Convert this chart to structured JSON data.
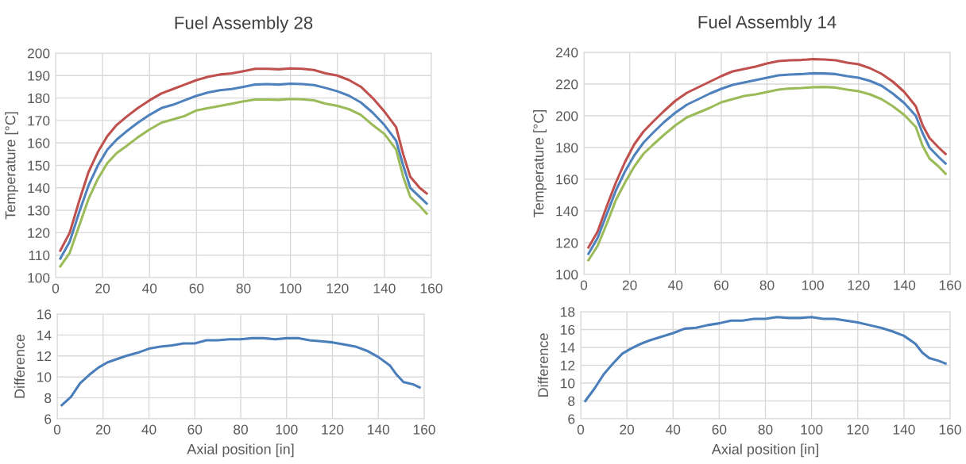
{
  "chart_data": [
    {
      "type": "line",
      "title": "Fuel Assembly 28",
      "ylabel": "Temperature [°C]",
      "grid": true,
      "xlim": [
        0,
        160
      ],
      "xticks": [
        0,
        20,
        40,
        60,
        80,
        100,
        120,
        140,
        160
      ],
      "ylim": [
        100,
        200
      ],
      "yticks": [
        100,
        110,
        120,
        130,
        140,
        150,
        160,
        170,
        180,
        190,
        200
      ],
      "x": [
        2,
        6,
        10,
        14,
        18,
        22,
        26,
        30,
        35,
        40,
        45,
        50,
        55,
        60,
        65,
        70,
        75,
        80,
        85,
        90,
        95,
        100,
        105,
        110,
        115,
        120,
        125,
        130,
        135,
        140,
        145,
        148,
        151,
        155,
        158
      ],
      "series": [
        {
          "color": "#c0504d",
          "values": [
            112,
            120,
            134,
            147,
            156,
            163,
            168,
            171.5,
            175.5,
            179,
            182,
            184,
            186,
            188,
            189.5,
            190.5,
            191,
            192,
            193,
            193,
            192.8,
            193.2,
            193,
            192.5,
            191,
            190,
            188,
            185,
            180,
            174,
            167,
            155,
            145,
            140,
            137.5
          ]
        },
        {
          "color": "#4f81bd",
          "values": [
            108.5,
            116,
            129,
            141,
            150,
            157,
            161.5,
            165,
            169,
            172.5,
            175.5,
            177,
            179,
            181,
            182.5,
            183.5,
            184,
            185,
            186,
            186.2,
            186,
            186.4,
            186.2,
            185.8,
            184.5,
            183,
            181,
            178,
            173.5,
            168,
            161,
            150,
            140,
            136,
            133
          ]
        },
        {
          "color": "#9bbb59",
          "values": [
            105,
            111,
            123,
            135,
            144,
            151,
            155.5,
            158.5,
            162.5,
            166,
            169,
            170.5,
            172,
            174.5,
            175.5,
            176.5,
            177.5,
            178.5,
            179.3,
            179.3,
            179.2,
            179.6,
            179.4,
            179,
            177.5,
            176.5,
            175,
            172.5,
            168,
            164,
            157,
            145,
            136,
            132,
            128.5
          ]
        }
      ]
    },
    {
      "type": "line",
      "title": "Fuel Assembly 14",
      "ylabel": "Temperature [°C]",
      "grid": true,
      "xlim": [
        0,
        160
      ],
      "xticks": [
        0,
        20,
        40,
        60,
        80,
        100,
        120,
        140,
        160
      ],
      "ylim": [
        100,
        240
      ],
      "yticks": [
        100,
        120,
        140,
        160,
        180,
        200,
        220,
        240
      ],
      "x": [
        2,
        6,
        10,
        14,
        18,
        22,
        26,
        30,
        35,
        40,
        45,
        50,
        55,
        60,
        65,
        70,
        75,
        80,
        85,
        90,
        95,
        100,
        105,
        110,
        115,
        120,
        125,
        130,
        135,
        140,
        145,
        148,
        151,
        155,
        158
      ],
      "series": [
        {
          "color": "#c0504d",
          "values": [
            117,
            127,
            143,
            158,
            171,
            182,
            190,
            196,
            203,
            209.5,
            214.5,
            218,
            221.5,
            225,
            228,
            229.5,
            231,
            233,
            234.5,
            235,
            235.2,
            235.7,
            235.5,
            235,
            233.5,
            232.5,
            230,
            226.5,
            221.5,
            215,
            206,
            194,
            186,
            180,
            176
          ]
        },
        {
          "color": "#4f81bd",
          "values": [
            113,
            123,
            138,
            153,
            165,
            175,
            183,
            189,
            196,
            202,
            207,
            210.5,
            214,
            217,
            219.5,
            221,
            222.5,
            224,
            225.5,
            226,
            226.3,
            226.8,
            226.7,
            226.3,
            225,
            224,
            222,
            219,
            214,
            208,
            200,
            189,
            180,
            174,
            170
          ]
        },
        {
          "color": "#9bbb59",
          "values": [
            109,
            118,
            132,
            147,
            158,
            168,
            176,
            181.5,
            188,
            194,
            199,
            202,
            205,
            208.5,
            210.5,
            212.5,
            213.5,
            215,
            216.5,
            217.2,
            217.5,
            218,
            218.2,
            217.8,
            216.5,
            215.5,
            213.5,
            210.5,
            206,
            200.5,
            193,
            181,
            173,
            168,
            163.5
          ]
        }
      ]
    },
    {
      "type": "line",
      "xlabel": "Axial position [in]",
      "ylabel": "Difference",
      "grid": true,
      "xlim": [
        0,
        160
      ],
      "xticks": [
        0,
        20,
        40,
        60,
        80,
        100,
        120,
        140,
        160
      ],
      "ylim": [
        6,
        16
      ],
      "yticks": [
        6,
        8,
        10,
        12,
        14,
        16
      ],
      "x": [
        2,
        6,
        10,
        14,
        18,
        22,
        26,
        30,
        35,
        40,
        45,
        50,
        55,
        60,
        65,
        70,
        75,
        80,
        85,
        90,
        95,
        100,
        105,
        110,
        115,
        120,
        125,
        130,
        135,
        140,
        145,
        148,
        151,
        155,
        158
      ],
      "series": [
        {
          "color": "#4a7ebb",
          "values": [
            7.3,
            8.1,
            9.4,
            10.2,
            10.9,
            11.4,
            11.7,
            12.0,
            12.3,
            12.7,
            12.9,
            13.0,
            13.2,
            13.2,
            13.5,
            13.5,
            13.6,
            13.6,
            13.7,
            13.7,
            13.6,
            13.7,
            13.7,
            13.5,
            13.4,
            13.3,
            13.1,
            12.9,
            12.5,
            11.9,
            11.1,
            10.2,
            9.5,
            9.3,
            9.0
          ]
        }
      ]
    },
    {
      "type": "line",
      "xlabel": "Axial position [in]",
      "ylabel": "Difference",
      "grid": true,
      "xlim": [
        0,
        160
      ],
      "xticks": [
        0,
        20,
        40,
        60,
        80,
        100,
        120,
        140,
        160
      ],
      "ylim": [
        6,
        18
      ],
      "yticks": [
        6,
        8,
        10,
        12,
        14,
        16,
        18
      ],
      "x": [
        2,
        6,
        10,
        14,
        18,
        22,
        26,
        30,
        35,
        40,
        45,
        50,
        55,
        60,
        65,
        70,
        75,
        80,
        85,
        90,
        95,
        100,
        105,
        110,
        115,
        120,
        125,
        130,
        135,
        140,
        145,
        148,
        151,
        155,
        158
      ],
      "series": [
        {
          "color": "#4a7ebb",
          "values": [
            8,
            9.4,
            11.0,
            12.2,
            13.3,
            13.9,
            14.4,
            14.8,
            15.2,
            15.6,
            16.1,
            16.2,
            16.5,
            16.7,
            17.0,
            17.0,
            17.2,
            17.2,
            17.4,
            17.3,
            17.3,
            17.4,
            17.2,
            17.2,
            17.0,
            16.8,
            16.5,
            16.2,
            15.8,
            15.3,
            14.4,
            13.4,
            12.8,
            12.5,
            12.2
          ]
        }
      ]
    }
  ]
}
